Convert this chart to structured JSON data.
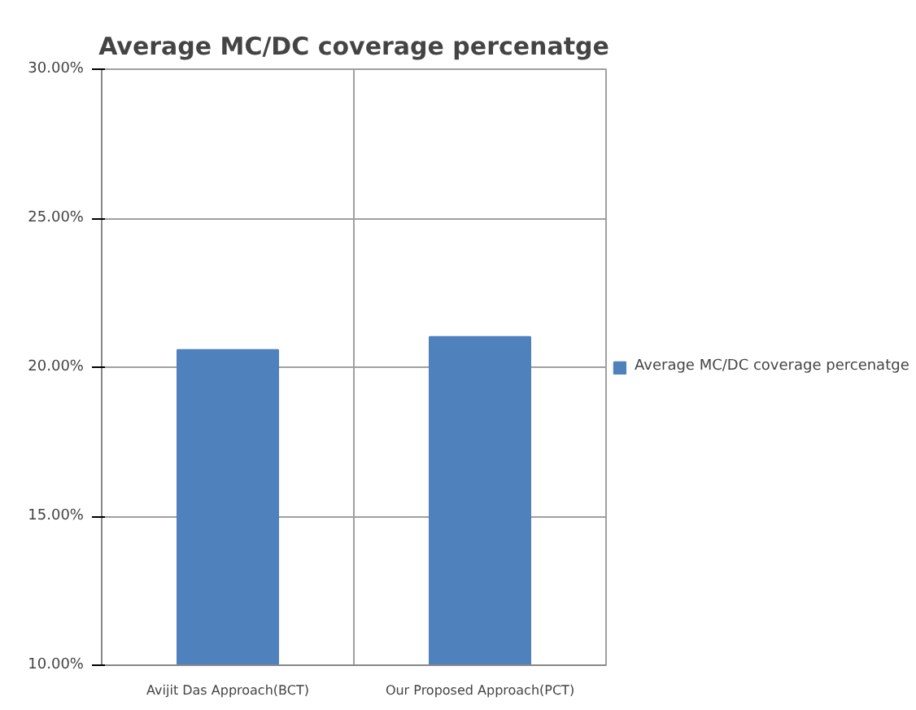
{
  "chart_data": {
    "type": "bar",
    "title": "Average MC/DC coverage percenatge",
    "categories": [
      "Avijit Das Approach(BCT)",
      "Our Proposed Approach(PCT)"
    ],
    "series": [
      {
        "name": "Average MC/DC coverage percenatge",
        "color": "#4f81bd",
        "values": [
          20.58,
          21.02
        ]
      }
    ],
    "ylim": [
      10,
      30
    ],
    "yticks": [
      {
        "value": 10,
        "label": "10.00%"
      },
      {
        "value": 15,
        "label": "15.00%"
      },
      {
        "value": 20,
        "label": "20.00%"
      },
      {
        "value": 25,
        "label": "25.00%"
      },
      {
        "value": 30,
        "label": "30.00%"
      }
    ],
    "grid": true,
    "legend": "right"
  }
}
